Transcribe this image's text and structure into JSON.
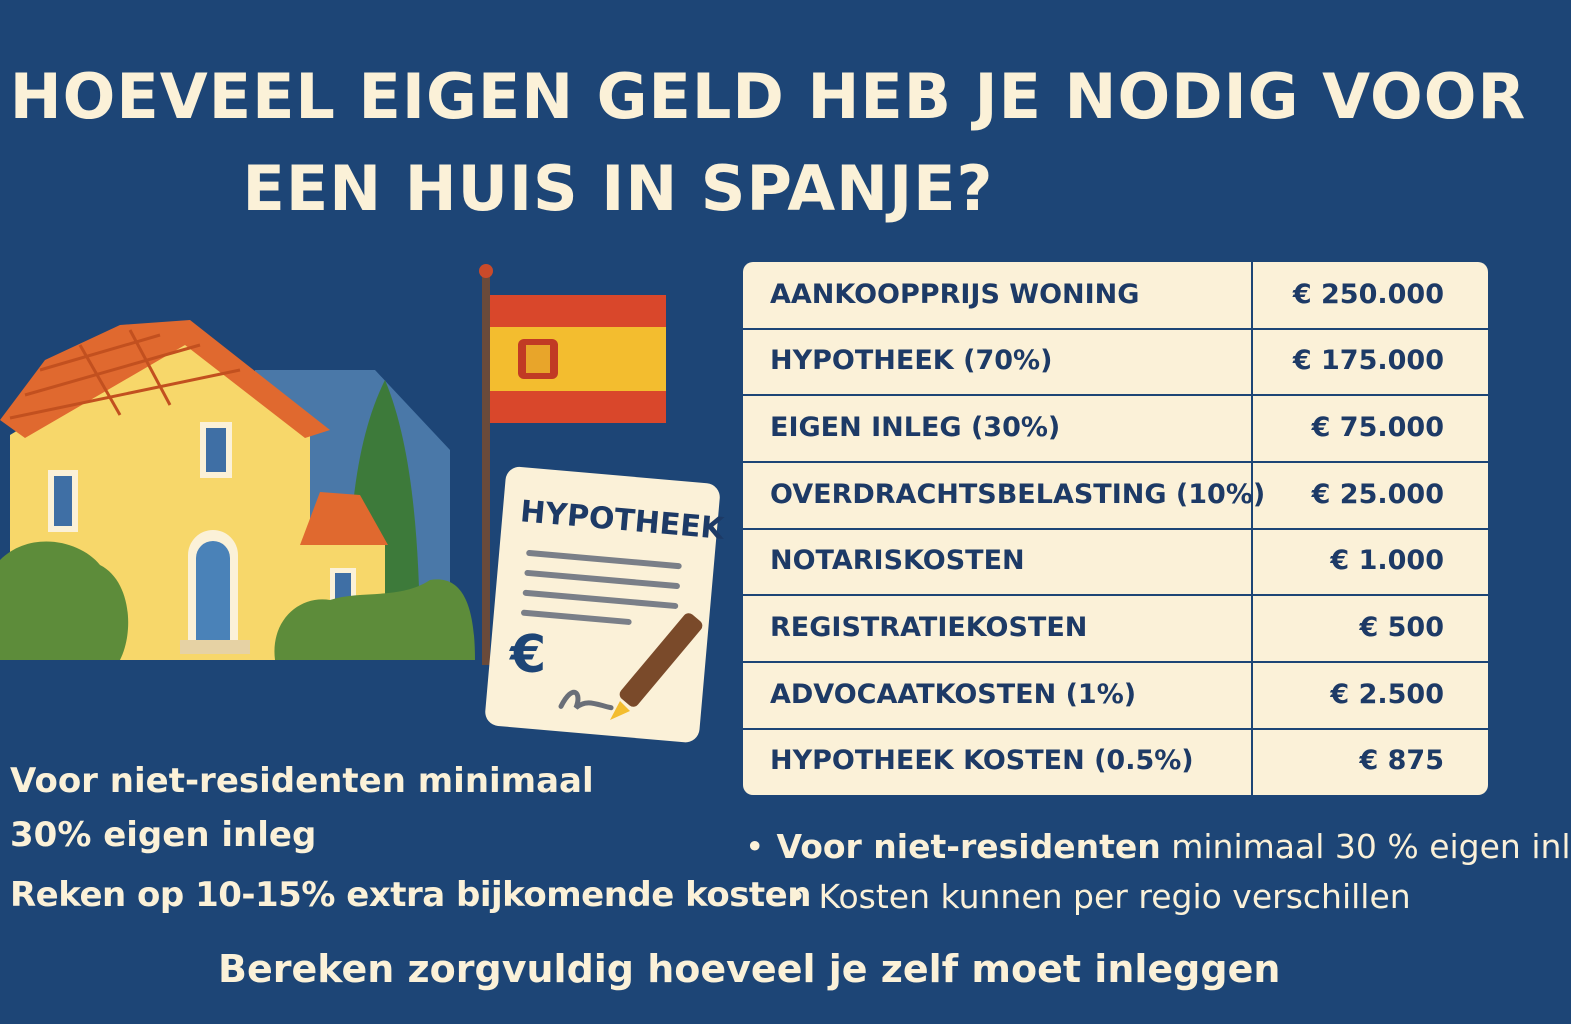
{
  "title": {
    "line1": "HOEVEEL EIGEN GELD HEB JE NODIG VOOR",
    "line2": "EEN HUIS IN SPANJE?"
  },
  "document": {
    "heading": "HYPOTHEEK",
    "currency_symbol": "€"
  },
  "costs_table": [
    {
      "label": "AANKOOPPRIJS WONING",
      "value": "€ 250.000"
    },
    {
      "label": "HYPOTHEEK (70%)",
      "value": "€ 175.000"
    },
    {
      "label": "EIGEN INLEG (30%)",
      "value": "€ 75.000"
    },
    {
      "label": "OVERDRACHTSBELASTING (10%)",
      "value": "€ 25.000"
    },
    {
      "label": "NOTARISKOSTEN",
      "value": "€ 1.000"
    },
    {
      "label": "REGISTRATIEKOSTEN",
      "value": "€ 500"
    },
    {
      "label": "ADVOCAATKOSTEN (1%)",
      "value": "€ 2.500"
    },
    {
      "label": "HYPOTHEEK KOSTEN (0.5%)",
      "value": "€ 875"
    }
  ],
  "notes": {
    "line1": "Voor niet-residenten minimaal",
    "line2": "30% eigen inleg",
    "line3": "Reken op 10-15% extra bijkomende kosten",
    "footer": "Bereken zorgvuldig hoeveel je zelf moet inleggen"
  },
  "bullets": [
    {
      "bold": "Voor niet-residenten",
      "text": " minimaal 30 % eigen inl"
    },
    {
      "bold": "",
      "text": "Kosten kunnen per regio verschillen"
    }
  ],
  "colors": {
    "background": "#1d4576",
    "cream": "#fbf1d8",
    "table_text": "#1d3a66",
    "flag_red": "#d9472b",
    "flag_yellow": "#f3bd2f",
    "house_wall": "#f7d76a",
    "roof": "#e0692f"
  },
  "icons": [
    "house-illustration",
    "spain-flag",
    "mortgage-document",
    "pen-icon",
    "euro-icon"
  ]
}
